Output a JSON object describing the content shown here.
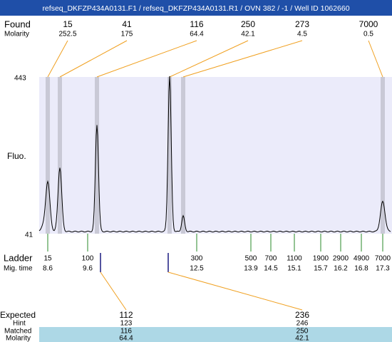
{
  "header": {
    "title": "refseq_DKFZP434A0131.F1 / refseq_DKFZP434A0131.R1 / OVN 382 / -1 / Well ID 1062660"
  },
  "found": {
    "label": "Found",
    "sizes": [
      15,
      41,
      116,
      250,
      273,
      7000
    ],
    "molarity_label": "Molarity",
    "molarities": [
      252.5,
      175,
      64.4,
      42.1,
      4.5,
      0.5
    ]
  },
  "plot": {
    "y_max": 443,
    "y_min": 41,
    "y_label": "Fluo."
  },
  "ladder": {
    "label": "Ladder",
    "sizes": [
      15,
      100,
      300,
      500,
      700,
      1100,
      1900,
      2900,
      4900,
      7000
    ],
    "time_label": "Mig. time",
    "times": [
      8.6,
      9.6,
      12.5,
      13.9,
      14.5,
      15.1,
      15.7,
      16.2,
      16.8,
      17.3
    ]
  },
  "expected": {
    "label": "Expected",
    "values": [
      112,
      236
    ],
    "hint_label": "Hint",
    "hints": [
      123,
      246
    ],
    "matched_label": "Matched",
    "matched": [
      116,
      250
    ],
    "molarity_label": "Molarity",
    "molarities": [
      64.4,
      42.1
    ]
  }
}
